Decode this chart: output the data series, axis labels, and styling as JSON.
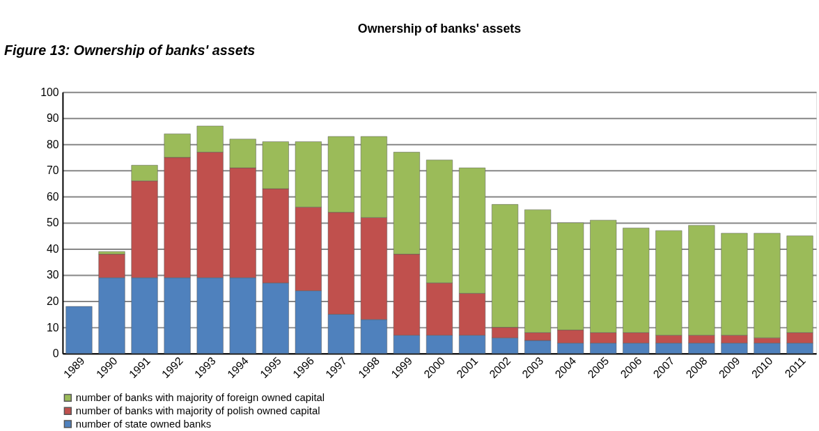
{
  "chart_data": {
    "type": "bar",
    "stacked": true,
    "title": "Ownership of banks' assets",
    "annotations": [
      "Figure 13: Ownership of banks' assets"
    ],
    "categories": [
      "1989",
      "1990",
      "1991",
      "1992",
      "1993",
      "1994",
      "1995",
      "1996",
      "1997",
      "1998",
      "1999",
      "2000",
      "2001",
      "2002",
      "2003",
      "2004",
      "2005",
      "2006",
      "2007",
      "2008",
      "2009",
      "2010",
      "2011"
    ],
    "series": [
      {
        "name": "number of state owned banks",
        "color": "#4f81bd",
        "values": [
          18,
          29,
          29,
          29,
          29,
          29,
          27,
          24,
          15,
          13,
          7,
          7,
          7,
          6,
          5,
          4,
          4,
          4,
          4,
          4,
          4,
          4,
          4
        ]
      },
      {
        "name": "number of banks with majority of polish owned capital",
        "color": "#c0504d",
        "values": [
          null,
          9,
          37,
          46,
          48,
          42,
          36,
          32,
          39,
          39,
          31,
          20,
          16,
          4,
          3,
          5,
          4,
          4,
          3,
          3,
          3,
          2,
          4
        ]
      },
      {
        "name": "number of banks with majority of foreign owned capital",
        "color": "#9bbb59",
        "values": [
          null,
          1,
          6,
          9,
          10,
          11,
          18,
          25,
          29,
          31,
          39,
          47,
          48,
          47,
          47,
          41,
          43,
          40,
          40,
          42,
          39,
          40,
          37
        ]
      }
    ],
    "ylim": [
      0,
      100
    ],
    "yticks": [
      0,
      10,
      20,
      30,
      40,
      50,
      60,
      70,
      80,
      90,
      100
    ],
    "grid": "y",
    "legend": "bottom"
  }
}
